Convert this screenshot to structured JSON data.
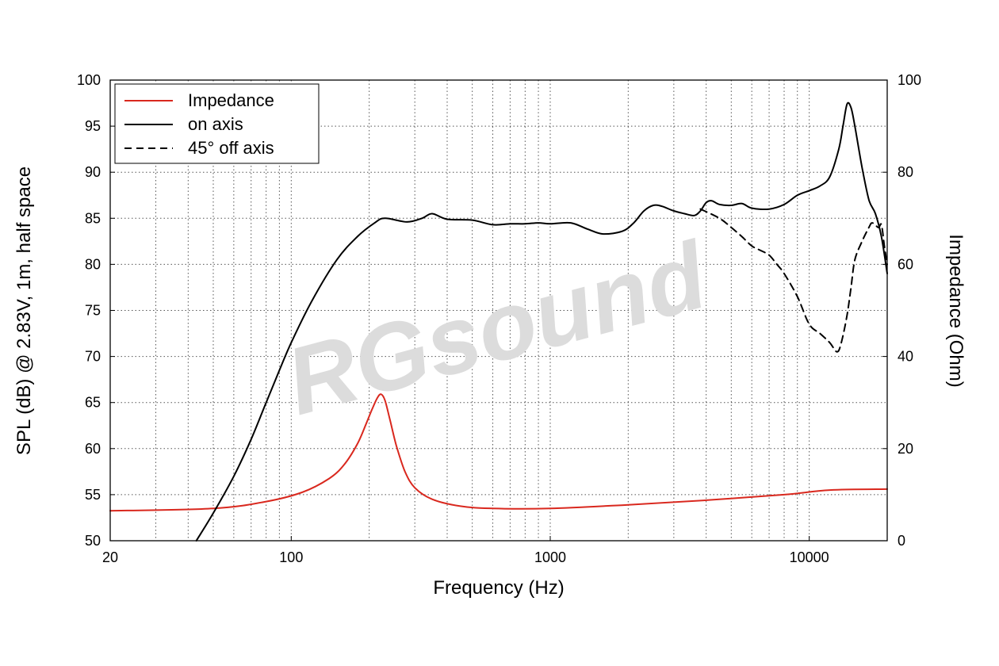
{
  "watermark": "RGsound",
  "chart_data": {
    "type": "line",
    "xlabel": "Frequency (Hz)",
    "ylabel": "SPL (dB) @ 2.83V, 1m, half space",
    "y2label": "Impedance (Ohm)",
    "xscale": "log",
    "xlim": [
      20,
      20000
    ],
    "ylim": [
      50,
      100
    ],
    "y2lim": [
      0,
      100
    ],
    "xticks": [
      20,
      100,
      1000,
      10000
    ],
    "xtick_labels": [
      "20",
      "100",
      "1000",
      "10000"
    ],
    "yticks": [
      50,
      55,
      60,
      65,
      70,
      75,
      80,
      85,
      90,
      95,
      100
    ],
    "ytick_labels": [
      "50",
      "55",
      "60",
      "65",
      "70",
      "75",
      "80",
      "85",
      "90",
      "95",
      "100"
    ],
    "y2ticks": [
      0,
      20,
      40,
      60,
      80,
      100
    ],
    "y2tick_labels": [
      "0",
      "20",
      "40",
      "60",
      "80",
      "100"
    ],
    "grid": true,
    "legend_position": "top-left",
    "series": [
      {
        "name": "Impedance",
        "axis": "right",
        "color": "#d9281e",
        "dash": "solid",
        "points": [
          [
            20,
            6.5
          ],
          [
            50,
            7
          ],
          [
            80,
            8.5
          ],
          [
            110,
            10.5
          ],
          [
            140,
            13.5
          ],
          [
            160,
            16.5
          ],
          [
            180,
            21
          ],
          [
            195,
            25.5
          ],
          [
            205,
            28.5
          ],
          [
            215,
            31
          ],
          [
            222,
            31.8
          ],
          [
            230,
            30.5
          ],
          [
            240,
            26.5
          ],
          [
            255,
            20.5
          ],
          [
            275,
            15
          ],
          [
            300,
            11.5
          ],
          [
            350,
            9
          ],
          [
            450,
            7.5
          ],
          [
            600,
            7
          ],
          [
            1000,
            7
          ],
          [
            2000,
            7.8
          ],
          [
            4000,
            8.8
          ],
          [
            8000,
            10
          ],
          [
            12000,
            11
          ],
          [
            20000,
            11.2
          ]
        ]
      },
      {
        "name": "on axis",
        "axis": "left",
        "color": "#000000",
        "dash": "solid",
        "points": [
          [
            43,
            50
          ],
          [
            50,
            53
          ],
          [
            60,
            57
          ],
          [
            70,
            61
          ],
          [
            80,
            65
          ],
          [
            90,
            68.5
          ],
          [
            100,
            71.5
          ],
          [
            120,
            76
          ],
          [
            150,
            80.5
          ],
          [
            180,
            83
          ],
          [
            210,
            84.5
          ],
          [
            230,
            85
          ],
          [
            280,
            84.6
          ],
          [
            320,
            85
          ],
          [
            350,
            85.5
          ],
          [
            400,
            84.9
          ],
          [
            500,
            84.8
          ],
          [
            600,
            84.3
          ],
          [
            700,
            84.4
          ],
          [
            800,
            84.4
          ],
          [
            900,
            84.5
          ],
          [
            1000,
            84.4
          ],
          [
            1200,
            84.5
          ],
          [
            1400,
            83.8
          ],
          [
            1600,
            83.3
          ],
          [
            1900,
            83.6
          ],
          [
            2100,
            84.5
          ],
          [
            2300,
            85.8
          ],
          [
            2500,
            86.4
          ],
          [
            2700,
            86.3
          ],
          [
            3000,
            85.8
          ],
          [
            3300,
            85.5
          ],
          [
            3600,
            85.3
          ],
          [
            3800,
            85.8
          ],
          [
            4000,
            86.7
          ],
          [
            4200,
            86.9
          ],
          [
            4500,
            86.5
          ],
          [
            5000,
            86.4
          ],
          [
            5500,
            86.6
          ],
          [
            6000,
            86.1
          ],
          [
            7000,
            86.0
          ],
          [
            8000,
            86.5
          ],
          [
            9000,
            87.5
          ],
          [
            10000,
            88.0
          ],
          [
            11000,
            88.5
          ],
          [
            12000,
            89.5
          ],
          [
            13000,
            92.5
          ],
          [
            13500,
            95.0
          ],
          [
            14000,
            97.4
          ],
          [
            14500,
            97.0
          ],
          [
            15000,
            95.0
          ],
          [
            16000,
            90.5
          ],
          [
            17000,
            87.0
          ],
          [
            18000,
            85.5
          ],
          [
            19000,
            83.0
          ],
          [
            20000,
            79.0
          ]
        ]
      },
      {
        "name": "45° off axis",
        "axis": "left",
        "color": "#000000",
        "dash": "dashed",
        "points": [
          [
            3800,
            86.0
          ],
          [
            4500,
            85.0
          ],
          [
            5000,
            84.0
          ],
          [
            5500,
            83.0
          ],
          [
            6000,
            82.0
          ],
          [
            6500,
            81.5
          ],
          [
            7000,
            81.0
          ],
          [
            7500,
            80.0
          ],
          [
            8000,
            79.0
          ],
          [
            9000,
            76.5
          ],
          [
            10000,
            73.5
          ],
          [
            11000,
            72.5
          ],
          [
            12000,
            71.5
          ],
          [
            12800,
            70.5
          ],
          [
            13300,
            71.5
          ],
          [
            14000,
            74.5
          ],
          [
            14500,
            77.5
          ],
          [
            15000,
            80.5
          ],
          [
            16000,
            82.5
          ],
          [
            17000,
            84.0
          ],
          [
            17500,
            84.5
          ],
          [
            18500,
            84.0
          ],
          [
            19000,
            84.3
          ],
          [
            19500,
            82.0
          ],
          [
            20000,
            80.0
          ]
        ]
      }
    ]
  }
}
